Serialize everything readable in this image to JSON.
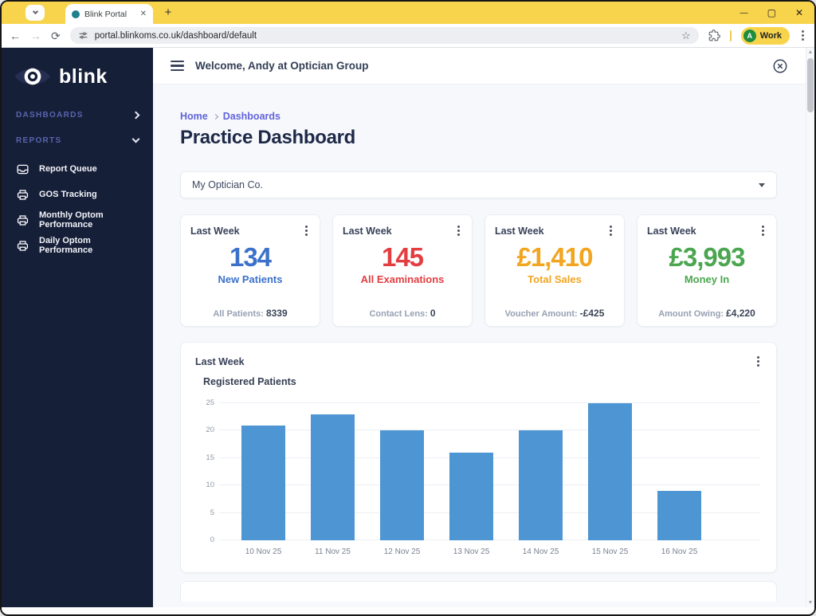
{
  "browser": {
    "tab": {
      "title": "Blink Portal",
      "close_glyph": "✕"
    },
    "new_tab_glyph": "+",
    "url": "portal.blinkoms.co.uk/dashboard/default",
    "back_glyph": "←",
    "forward_glyph": "→",
    "reload_glyph": "⟳",
    "bookmark_glyph": "☆",
    "profile": {
      "name": "Work",
      "initial": "A"
    },
    "window_controls": {
      "minimize": "—",
      "maximize": "▢",
      "close": "✕"
    },
    "scroll_up_glyph": "▲",
    "scroll_down_glyph": "▼"
  },
  "colors": {
    "chrome_yellow": "#F8D44C",
    "sidebar_bg": "#161F38",
    "favicon_teal": "#20808D",
    "avatar_green": "#1E8E3E",
    "stat_blue": "#3B71CA",
    "stat_red": "#E23E41",
    "stat_orange": "#F2A51F",
    "stat_green": "#4BA64F",
    "bar_blue": "#4E96D3",
    "breadcrumb_indigo": "#6064D9"
  },
  "sidebar": {
    "logo_text": "blink",
    "sections": [
      {
        "label": "DASHBOARDS"
      },
      {
        "label": "REPORTS"
      }
    ],
    "items": [
      {
        "label": "Report Queue"
      },
      {
        "label": "GOS Tracking"
      },
      {
        "label": "Monthly Optom Performance"
      },
      {
        "label": "Daily Optom Performance"
      }
    ]
  },
  "header": {
    "welcome": "Welcome, Andy at Optician Group"
  },
  "breadcrumb": {
    "items": [
      "Home",
      "Dashboards"
    ]
  },
  "page": {
    "title": "Practice Dashboard"
  },
  "filter": {
    "selected": "My Optician Co."
  },
  "stat_cards": [
    {
      "period": "Last Week",
      "value": "134",
      "label": "New Patients",
      "color": "#3B71CA",
      "footer_label": "All Patients:",
      "footer_value": "8339"
    },
    {
      "period": "Last Week",
      "value": "145",
      "label": "All Examinations",
      "color": "#E23E41",
      "footer_label": "Contact Lens:",
      "footer_value": "0"
    },
    {
      "period": "Last Week",
      "value": "£1,410",
      "label": "Total Sales",
      "color": "#F2A51F",
      "footer_label": "Voucher Amount:",
      "footer_value": "-£425"
    },
    {
      "period": "Last Week",
      "value": "£3,993",
      "label": "Money In",
      "color": "#4BA64F",
      "footer_label": "Amount Owing:",
      "footer_value": "£4,220"
    }
  ],
  "chart_card": {
    "period": "Last Week"
  },
  "chart_data": {
    "type": "bar",
    "title": "Registered Patients",
    "categories": [
      "10 Nov 25",
      "11 Nov 25",
      "12 Nov 25",
      "13 Nov 25",
      "14 Nov 25",
      "15 Nov 25",
      "16 Nov 25"
    ],
    "values": [
      21,
      23,
      20,
      16,
      20,
      25,
      9
    ],
    "xlabel": "",
    "ylabel": "",
    "ylim": [
      0,
      25
    ],
    "yticks": [
      0,
      5,
      10,
      15,
      20,
      25
    ],
    "bar_color": "#4E96D3",
    "grid": true,
    "legend": false
  }
}
